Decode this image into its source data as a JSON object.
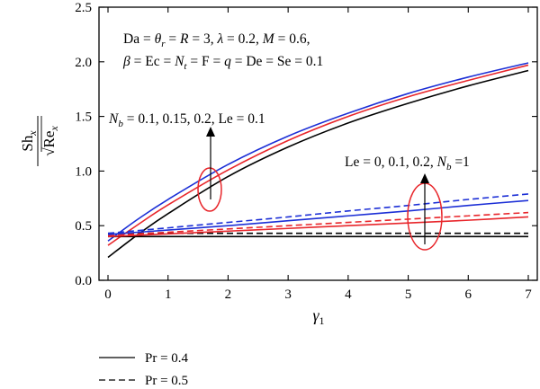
{
  "chart_data": {
    "type": "line",
    "xlabel": "γ",
    "xlabel_sub": "1",
    "ylabel_num": "Sh",
    "ylabel_num_sub": "x",
    "ylabel_den": "Re",
    "ylabel_den_sub": "x",
    "xlim": [
      -0.15,
      7.15
    ],
    "ylim": [
      0.0,
      2.5
    ],
    "x_ticks": [
      0,
      1,
      2,
      3,
      4,
      5,
      6,
      7
    ],
    "y_ticks": [
      0.0,
      0.5,
      1.0,
      1.5,
      2.0,
      2.5
    ],
    "x_tick_labels": [
      "0",
      "1",
      "2",
      "3",
      "4",
      "5",
      "6",
      "7"
    ],
    "y_tick_labels": [
      "0.0",
      "0.5",
      "1.0",
      "1.5",
      "2.0",
      "2.5"
    ],
    "legend_placement": "bottom-left, below plot",
    "legend": [
      {
        "label": "Pr = 0.4",
        "dash": "solid"
      },
      {
        "label": "Pr = 0.5",
        "dash": "dashed"
      }
    ],
    "annotations": {
      "params_line1": "Da = θr = R = 3, λ = 0.2, M = 0.6,",
      "params_line2": "β = Ec = Nt = F = q = De = Se = 0.1",
      "nb_label": "Nb = 0.1, 0.15, 0.2, Le = 0.1",
      "le_label": "Le = 0, 0.1, 0.2, Nb =1"
    },
    "series": [
      {
        "group": "Nb",
        "color": "#000000",
        "dash": "solid",
        "x": [
          0,
          0.5,
          1,
          2,
          3,
          4,
          5,
          6,
          7
        ],
        "y": [
          0.21,
          0.42,
          0.61,
          0.95,
          1.22,
          1.44,
          1.62,
          1.78,
          1.92
        ]
      },
      {
        "group": "Nb",
        "color": "#e8262b",
        "dash": "solid",
        "x": [
          0,
          0.5,
          1,
          2,
          3,
          4,
          5,
          6,
          7
        ],
        "y": [
          0.32,
          0.51,
          0.69,
          1.01,
          1.28,
          1.5,
          1.68,
          1.83,
          1.97
        ]
      },
      {
        "group": "Nb",
        "color": "#1c2fd6",
        "dash": "solid",
        "x": [
          0,
          0.5,
          1,
          2,
          3,
          4,
          5,
          6,
          7
        ],
        "y": [
          0.36,
          0.56,
          0.74,
          1.06,
          1.32,
          1.53,
          1.71,
          1.86,
          1.99
        ]
      },
      {
        "group": "Le",
        "color": "#000000",
        "dash": "solid",
        "x": [
          0,
          1,
          2,
          3,
          4,
          5,
          6,
          7
        ],
        "y": [
          0.4,
          0.4,
          0.4,
          0.4,
          0.4,
          0.4,
          0.4,
          0.4
        ]
      },
      {
        "group": "Le",
        "color": "#000000",
        "dash": "dashed",
        "x": [
          0,
          1,
          2,
          3,
          4,
          5,
          6,
          7
        ],
        "y": [
          0.43,
          0.43,
          0.43,
          0.43,
          0.43,
          0.43,
          0.43,
          0.43
        ]
      },
      {
        "group": "Le",
        "color": "#e8262b",
        "dash": "solid",
        "x": [
          0,
          1,
          2,
          3,
          4,
          5,
          6,
          7
        ],
        "y": [
          0.4,
          0.425,
          0.45,
          0.475,
          0.5,
          0.525,
          0.55,
          0.58
        ]
      },
      {
        "group": "Le",
        "color": "#e8262b",
        "dash": "dashed",
        "x": [
          0,
          1,
          2,
          3,
          4,
          5,
          6,
          7
        ],
        "y": [
          0.41,
          0.44,
          0.47,
          0.5,
          0.53,
          0.56,
          0.59,
          0.62
        ]
      },
      {
        "group": "Le",
        "color": "#1c2fd6",
        "dash": "solid",
        "x": [
          0,
          1,
          2,
          3,
          4,
          5,
          6,
          7
        ],
        "y": [
          0.42,
          0.46,
          0.5,
          0.545,
          0.59,
          0.635,
          0.685,
          0.73
        ]
      },
      {
        "group": "Le",
        "color": "#1c2fd6",
        "dash": "dashed",
        "x": [
          0,
          1,
          2,
          3,
          4,
          5,
          6,
          7
        ],
        "y": [
          0.43,
          0.48,
          0.53,
          0.58,
          0.635,
          0.685,
          0.74,
          0.79
        ]
      }
    ]
  }
}
